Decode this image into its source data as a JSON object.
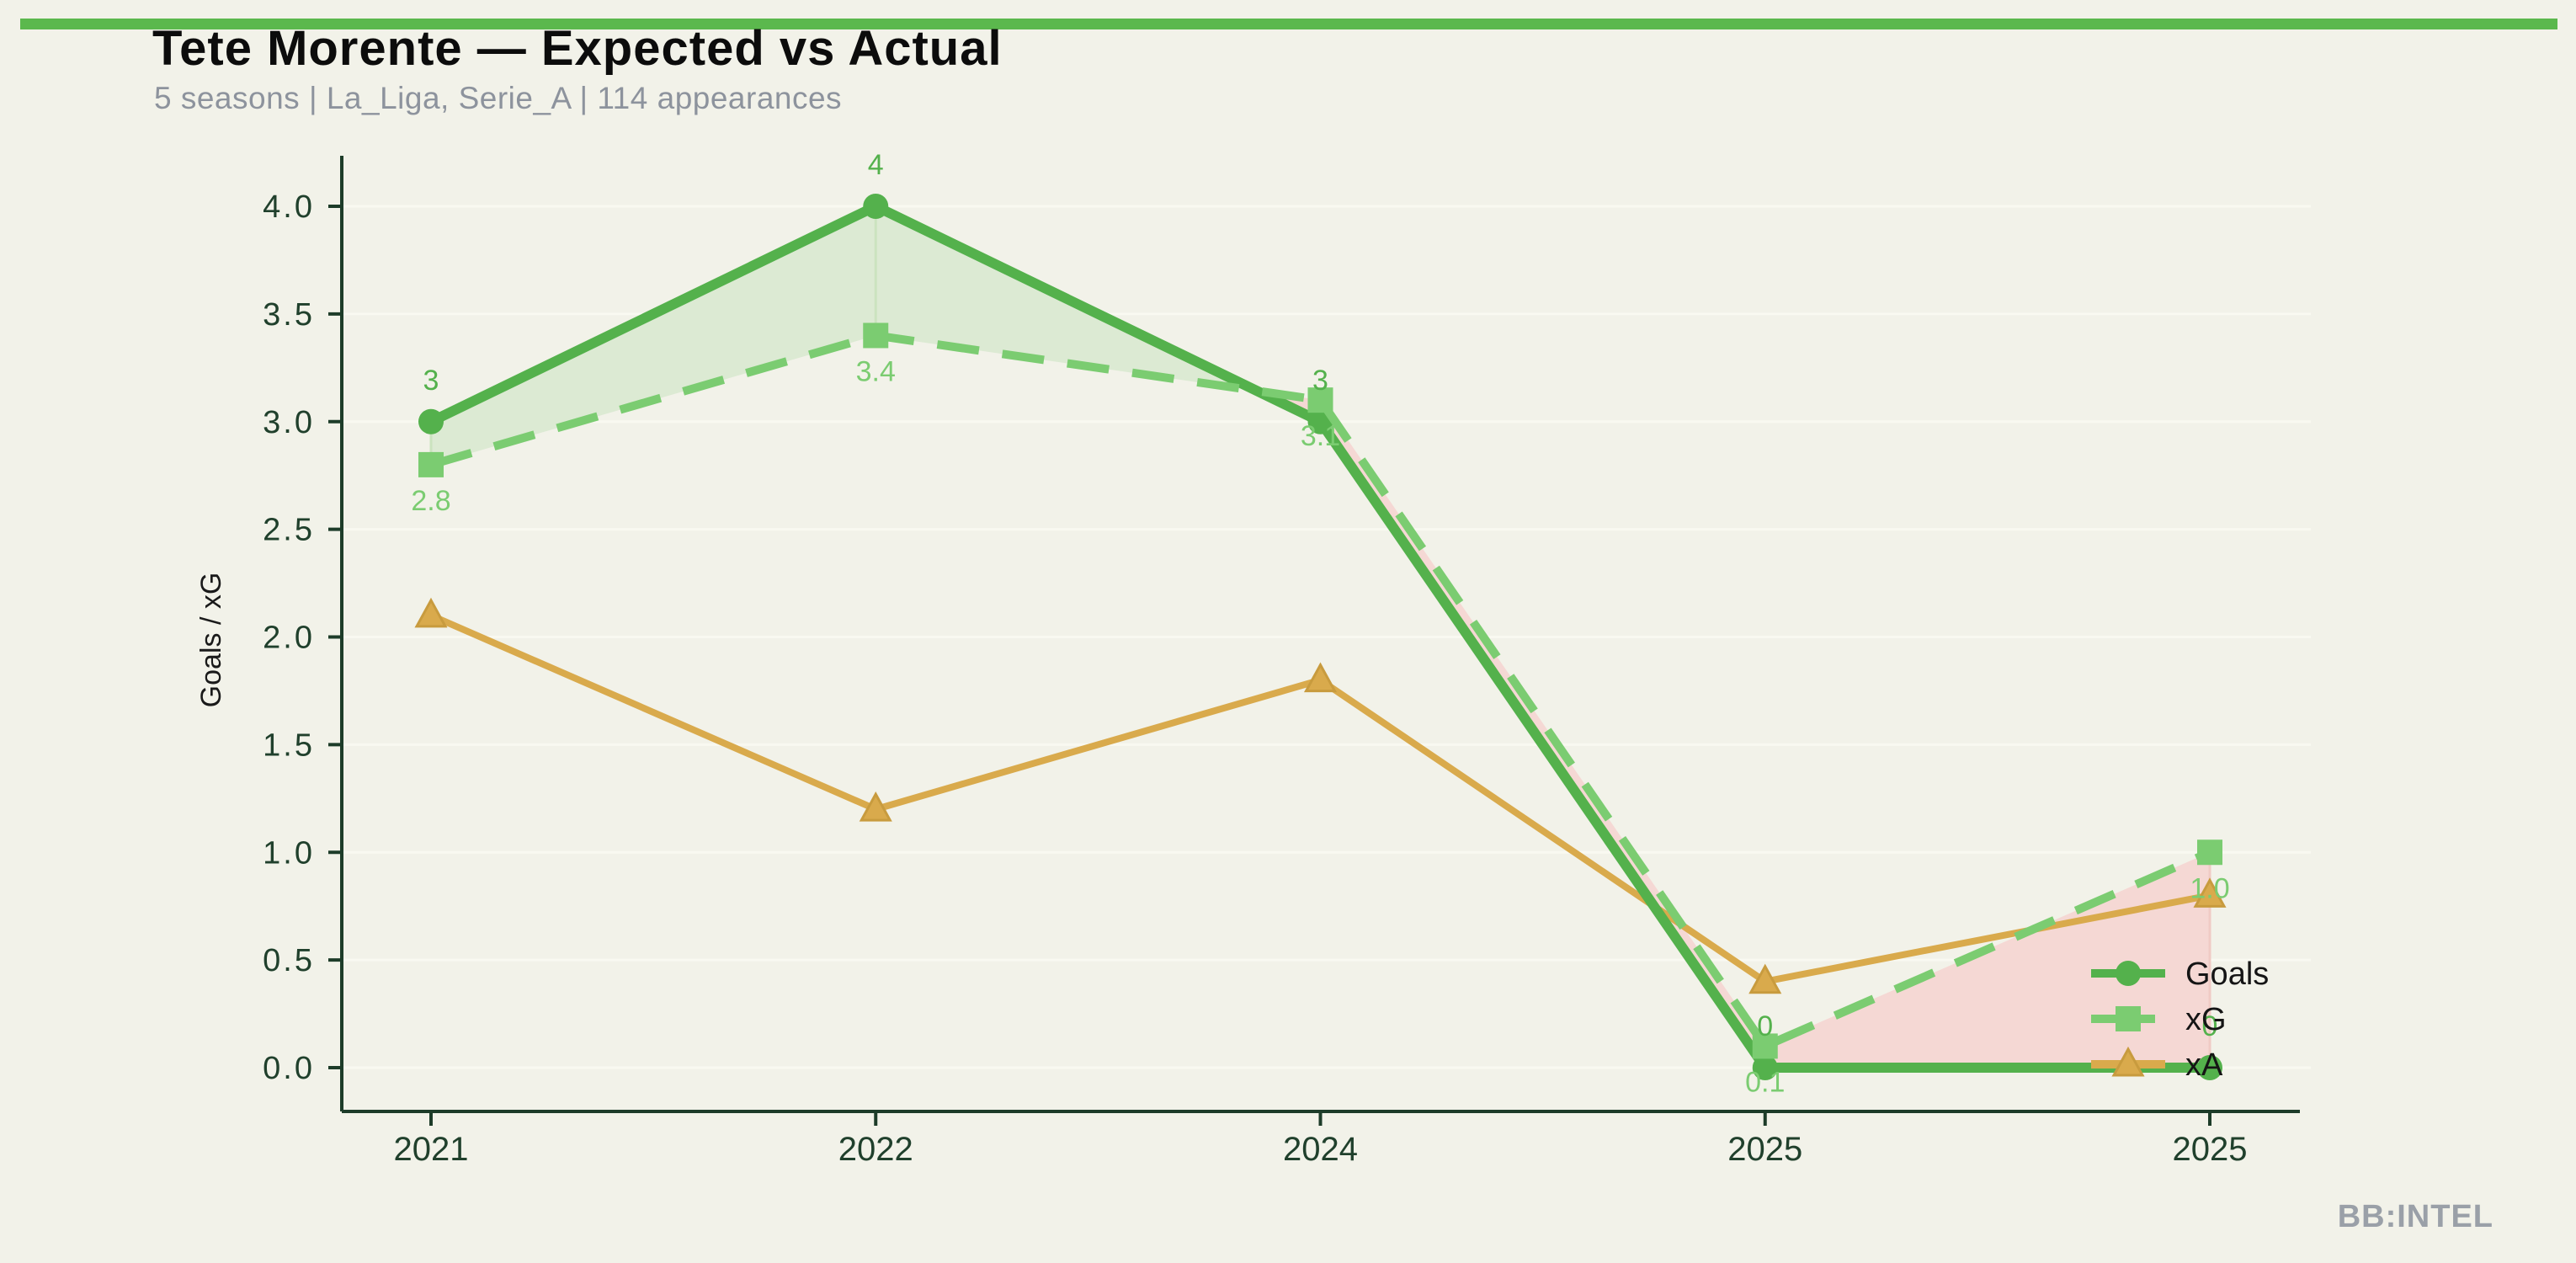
{
  "page": {
    "background": "#f2f2e9",
    "accent_bar_color": "#5bb84d",
    "watermark": "BB:INTEL"
  },
  "header": {
    "title": "Tete Morente — Expected vs Actual",
    "subtitle": "5 seasons | La_Liga, Serie_A | 114 appearances"
  },
  "chart_data": {
    "type": "line",
    "title": "Tete Morente — Expected vs Actual",
    "subtitle": "5 seasons | La_Liga, Serie_A | 114 appearances",
    "categories": [
      "2021",
      "2022",
      "2024",
      "2025",
      "2025"
    ],
    "series": [
      {
        "name": "Goals",
        "marker": "circle",
        "line_style": "solid",
        "color": "#54b14c",
        "values": [
          3,
          4,
          3,
          0,
          0
        ],
        "point_labels": [
          "3",
          "4",
          "3",
          "0",
          "0"
        ]
      },
      {
        "name": "xG",
        "marker": "square",
        "line_style": "dashed",
        "color": "#7bcc71",
        "values": [
          2.8,
          3.4,
          3.1,
          0.1,
          1.0
        ],
        "point_labels": [
          "2.8",
          "3.4",
          "3.1",
          "0.1",
          "1.0"
        ]
      },
      {
        "name": "xA",
        "marker": "triangle",
        "line_style": "solid",
        "color": "#d9aa4c",
        "marker_edge_color": "#c89b3e",
        "values": [
          2.1,
          1.2,
          1.8,
          0.4,
          0.8
        ],
        "point_labels": []
      }
    ],
    "xlabel": "",
    "ylabel": "Goals / xG",
    "ylim": [
      0,
      4.0
    ],
    "yticks": [
      "0.0",
      "0.5",
      "1.0",
      "1.5",
      "2.0",
      "2.5",
      "3.0",
      "3.5",
      "4.0"
    ],
    "grid": "faint horizontal gridlines at each 0.5",
    "legend": {
      "position": "lower right",
      "entries": [
        "Goals",
        "xG",
        "xA"
      ]
    },
    "diff_fill": {
      "between": [
        "Goals",
        "xG"
      ],
      "overperform_color": "#dcead3",
      "underperform_color": "#f5d8d4",
      "overperform_edge": "#cbe3bf",
      "underperform_edge": "#f0cbc5"
    },
    "axis_color": "#1d3c29",
    "tick_label_color": "#20402c",
    "ylabel_color": "#1a1a1a",
    "legend_text_color": "#151515"
  }
}
